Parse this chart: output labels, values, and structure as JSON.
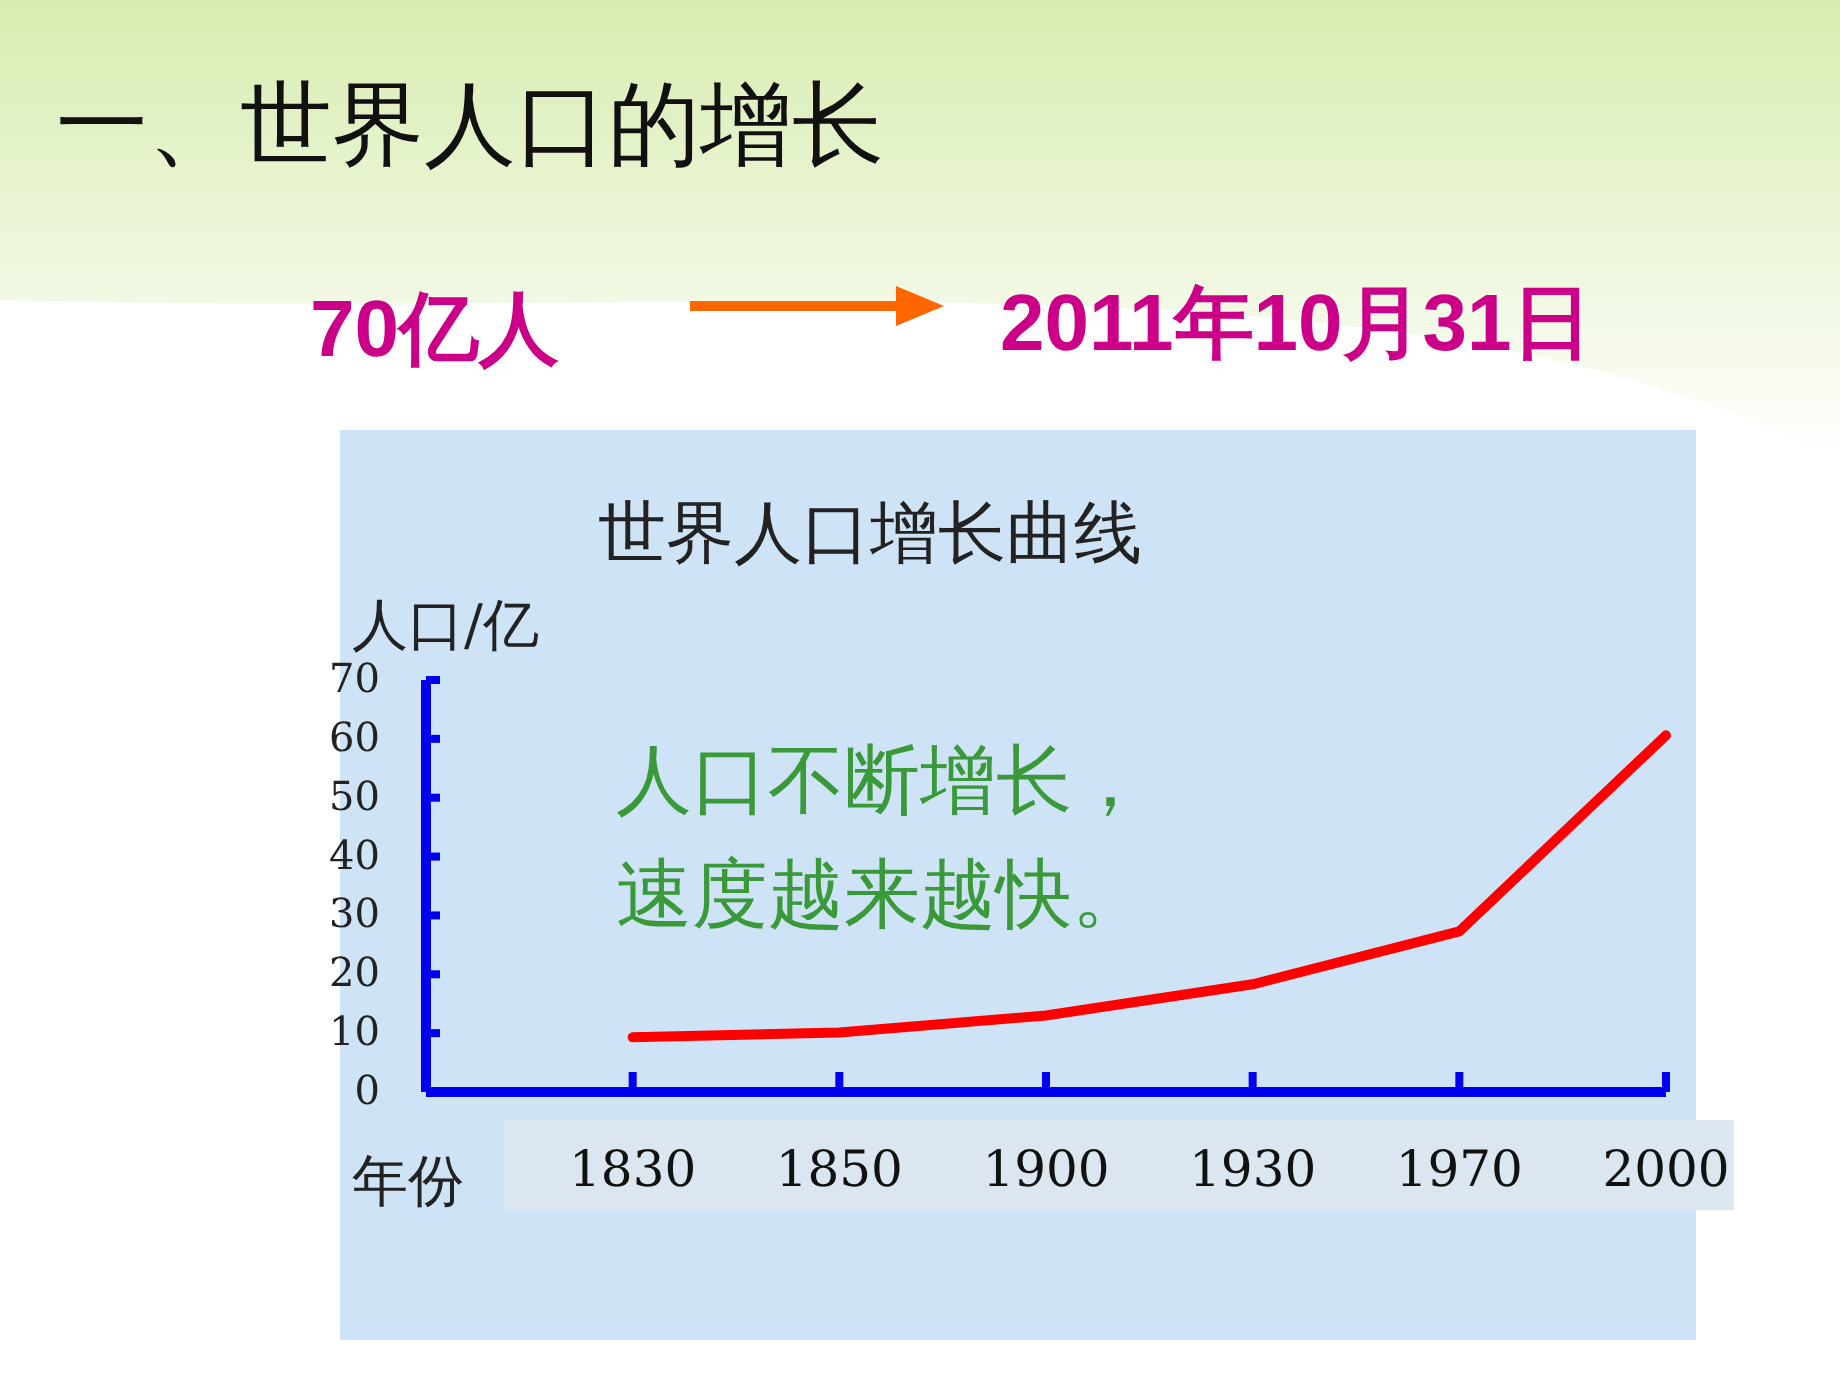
{
  "chart_data": {
    "type": "line",
    "title": "世界人口增长曲线",
    "ylabel": "人口/亿",
    "xlabel": "年份",
    "categories": [
      "1830",
      "1850",
      "1900",
      "1930",
      "1970",
      "2000"
    ],
    "series": [
      {
        "color": "#ff0000",
        "values": [
          9.3,
          10.1,
          13.0,
          18.3,
          27.3,
          60.6
        ]
      }
    ],
    "ylim": [
      0,
      70
    ],
    "yticks": [
      0,
      10,
      20,
      30,
      40,
      50,
      60,
      70
    ],
    "grid": false,
    "marker": "none",
    "line_style": "solid",
    "annotations": [
      "一、世界人口的增长",
      "70亿人",
      "2011年10月31日",
      "人口不断增长，",
      "速度越来越快。"
    ]
  }
}
